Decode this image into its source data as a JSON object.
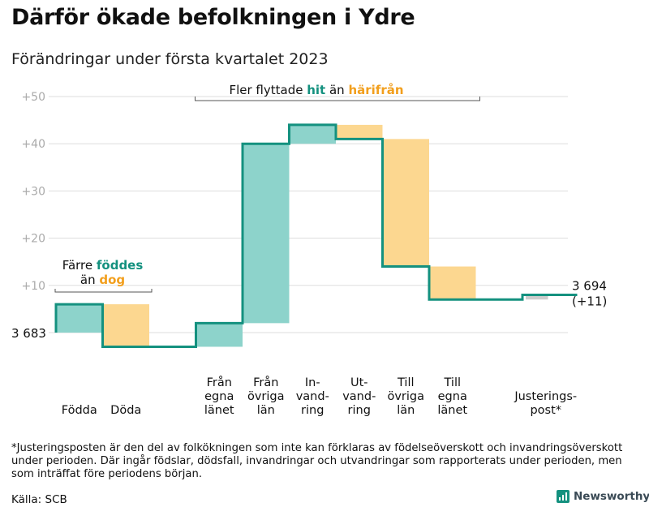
{
  "header": {
    "title": "Därför ökade befolkningen i Ydre",
    "subtitle": "Förändringar under första kvartalet 2023"
  },
  "colors": {
    "in_fill": "#8dd3cb",
    "out_fill": "#fcd790",
    "adjust_fill": "#cccccc",
    "line": "#14917f",
    "teal_text": "#14917f",
    "orange_text": "#f29f1d",
    "grid": "#dddddd",
    "tick": "#aaaaaa"
  },
  "chart_data": {
    "type": "waterfall",
    "start_value": 3683,
    "start_label": "3 683",
    "end_label_lines": [
      "3 694",
      "(+11)"
    ],
    "y_offset_ticks": [
      "+10",
      "+20",
      "+30",
      "+40",
      "+50"
    ],
    "ylim_offset": [
      -3,
      52
    ],
    "categories": [
      {
        "label": [
          "Födda"
        ],
        "change": 6,
        "kind": "in"
      },
      {
        "label": [
          "Döda"
        ],
        "change": -9,
        "kind": "out"
      },
      {
        "label": [],
        "change": 0,
        "kind": "none"
      },
      {
        "label": [
          "Från",
          "egna",
          "länet"
        ],
        "change": 5,
        "kind": "in"
      },
      {
        "label": [
          "Från",
          "övriga",
          "län"
        ],
        "change": 38,
        "kind": "in"
      },
      {
        "label": [
          "In-",
          "vand-",
          "ring"
        ],
        "change": 4,
        "kind": "in"
      },
      {
        "label": [
          "Ut-",
          "vand-",
          "ring"
        ],
        "change": -3,
        "kind": "out"
      },
      {
        "label": [
          "Till",
          "övriga",
          "län"
        ],
        "change": -27,
        "kind": "out"
      },
      {
        "label": [
          "Till",
          "egna",
          "länet"
        ],
        "change": -7,
        "kind": "out"
      },
      {
        "label": [],
        "change": 0,
        "kind": "none"
      },
      {
        "label": [
          "Justerings-",
          "post*"
        ],
        "change": 1,
        "kind": "adjust"
      }
    ],
    "final_value": 3694,
    "annotations": {
      "births": {
        "line1": "Färre",
        "line1_teal": "föddes",
        "line2": "än",
        "line2_orange": "dog"
      },
      "migration": {
        "pre": "Fler flyttade",
        "teal": "hit",
        "mid": "än",
        "orange": "härifrån"
      }
    }
  },
  "footer": {
    "note": "*Justeringsposten är den del av folkökningen som inte kan förklaras av födelseöverskott och invandringsöverskott under perioden. Där ingår födslar, dödsfall, invandringar och utvandringar som rapporterats under perioden, men som inträffat före periodens början.",
    "source": "Källa: SCB",
    "brand": "Newsworthy"
  }
}
